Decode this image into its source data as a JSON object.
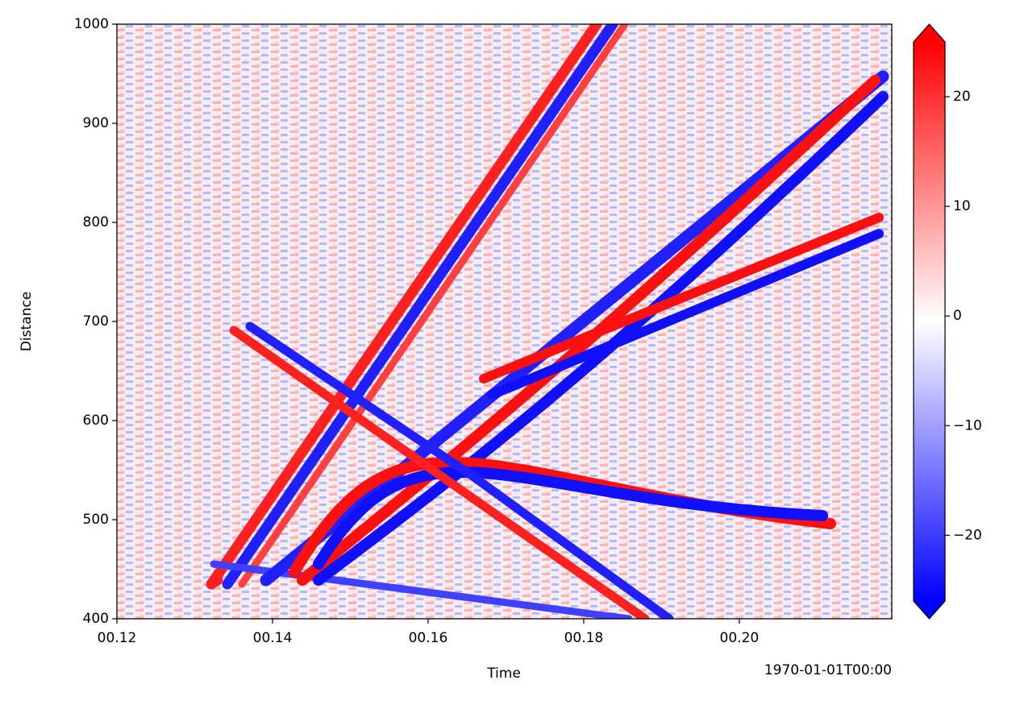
{
  "chart_data": {
    "type": "heatmap",
    "xlabel": "Time",
    "ylabel": "Distance",
    "x_offset_label": "1970-01-01T00:00",
    "xlim": [
      0.12,
      0.2196
    ],
    "xticks": [
      {
        "value": 0.12,
        "label": "00.12"
      },
      {
        "value": 0.14,
        "label": "00.14"
      },
      {
        "value": 0.16,
        "label": "00.16"
      },
      {
        "value": 0.18,
        "label": "00.18"
      },
      {
        "value": 0.2,
        "label": "00.20"
      }
    ],
    "ylim": [
      400,
      1000
    ],
    "yticks": [
      400,
      500,
      600,
      700,
      800,
      900,
      1000
    ],
    "colormap": [
      "#0000ff",
      "#ffffff",
      "#ff0000"
    ],
    "colorbar_extend": "both",
    "clim": [
      -26,
      25
    ],
    "cticks": [
      {
        "value": -20,
        "label": "−20"
      },
      {
        "value": -10,
        "label": "−10"
      },
      0,
      10,
      20
    ]
  }
}
